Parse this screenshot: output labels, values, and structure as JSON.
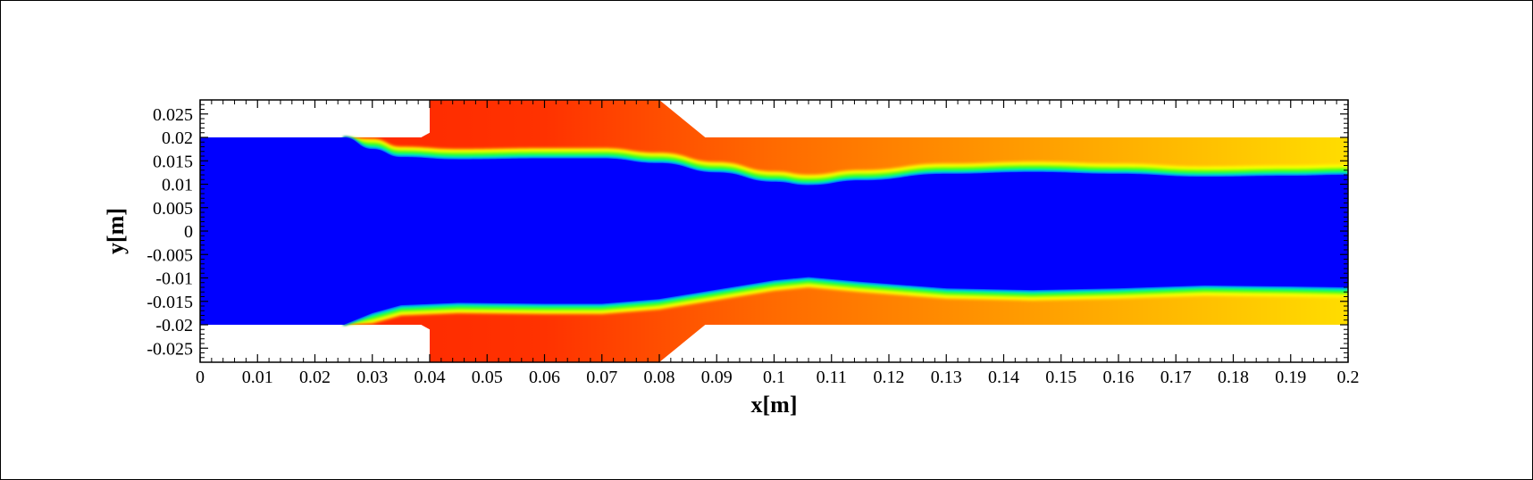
{
  "chart_data": {
    "type": "heatmap",
    "title": "",
    "xlabel": "x[m]",
    "ylabel": "y[m]",
    "xlim": [
      0,
      0.2
    ],
    "ylim": [
      -0.028,
      0.028
    ],
    "xticks": [
      "0",
      "0.01",
      "0.02",
      "0.03",
      "0.04",
      "0.05",
      "0.06",
      "0.07",
      "0.08",
      "0.09",
      "0.1",
      "0.11",
      "0.12",
      "0.13",
      "0.14",
      "0.15",
      "0.16",
      "0.17",
      "0.18",
      "0.19",
      "0.2"
    ],
    "yticks": [
      "0.025",
      "0.02",
      "0.015",
      "0.01",
      "0.005",
      "0",
      "-0.005",
      "-0.01",
      "-0.015",
      "-0.02",
      "-0.025"
    ],
    "grid": false,
    "colormap": "jet (blue low, red high)",
    "colors": {
      "core": "#0000ff",
      "annulus_hot": "#ff2a00",
      "annulus_downstream": "#ffcc00",
      "background": "#ffffff"
    },
    "domain": {
      "inlet_channel": {
        "x": [
          0,
          0.025
        ],
        "y": [
          -0.02,
          0.02
        ]
      },
      "step_region": {
        "x": [
          0.025,
          0.04
        ],
        "y": [
          -0.02,
          0.02
        ]
      },
      "expansion_chamber": {
        "x": [
          0.04,
          0.08
        ],
        "y": [
          -0.028,
          0.028
        ]
      },
      "contraction_cone": {
        "x": [
          0.08,
          0.088
        ],
        "y_start": [
          -0.028,
          0.028
        ],
        "y_end": [
          -0.02,
          0.02
        ]
      },
      "outlet_channel": {
        "x": [
          0.088,
          0.2
        ],
        "y": [
          -0.02,
          0.02
        ]
      }
    },
    "interface_upper": {
      "x": [
        0.025,
        0.03,
        0.035,
        0.045,
        0.06,
        0.07,
        0.08,
        0.09,
        0.1,
        0.106,
        0.115,
        0.13,
        0.145,
        0.16,
        0.175,
        0.19,
        0.2
      ],
      "y": [
        0.02,
        0.0175,
        0.0158,
        0.0153,
        0.0155,
        0.0155,
        0.0145,
        0.0125,
        0.0105,
        0.0098,
        0.0108,
        0.0122,
        0.0126,
        0.0122,
        0.0116,
        0.0118,
        0.012
      ]
    }
  }
}
